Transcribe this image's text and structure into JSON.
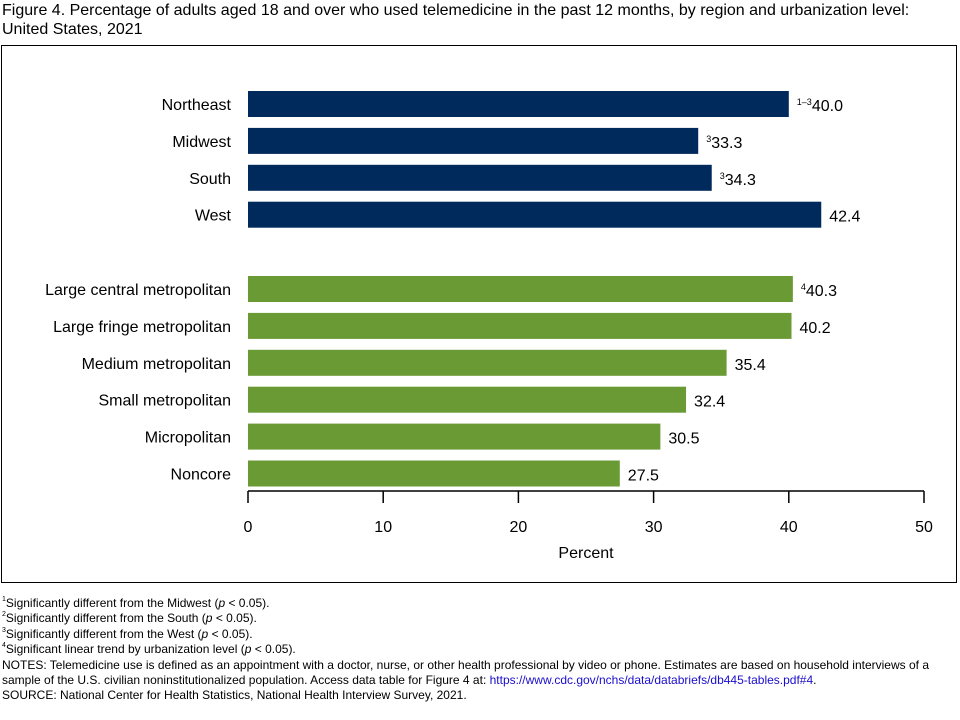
{
  "chart_data": {
    "type": "bar",
    "orientation": "horizontal",
    "title": "Figure 4. Percentage of adults aged 18 and over who used telemedicine in the past 12 months, by region and urbanization level: United States, 2021",
    "xlabel": "Percent",
    "xlim": [
      0,
      50
    ],
    "xticks": [
      0,
      10,
      20,
      30,
      40,
      50
    ],
    "groups": [
      {
        "name": "Region",
        "color": "#002a5c",
        "categories": [
          "Northeast",
          "Midwest",
          "South",
          "West"
        ],
        "values": [
          40.0,
          33.3,
          34.3,
          42.4
        ],
        "value_labels": [
          "40.0",
          "33.3",
          "34.3",
          "42.4"
        ],
        "superscripts": [
          "1–3",
          "3",
          "3",
          ""
        ]
      },
      {
        "name": "Urbanization level",
        "color": "#6a9a33",
        "categories": [
          "Large central metropolitan",
          "Large fringe metropolitan",
          "Medium metropolitan",
          "Small metropolitan",
          "Micropolitan",
          "Noncore"
        ],
        "values": [
          40.3,
          40.2,
          35.4,
          32.4,
          30.5,
          27.5
        ],
        "value_labels": [
          "40.3",
          "40.2",
          "35.4",
          "32.4",
          "30.5",
          "27.5"
        ],
        "superscripts": [
          "4",
          "",
          "",
          "",
          "",
          ""
        ]
      }
    ]
  },
  "footnotes": [
    {
      "mark": "1",
      "text": "Significantly different from the Midwest (",
      "p": "p",
      "tail": " < 0.05)."
    },
    {
      "mark": "2",
      "text": "Significantly different from the South (",
      "p": "p",
      "tail": " < 0.05)."
    },
    {
      "mark": "3",
      "text": "Significantly different from the West (",
      "p": "p",
      "tail": " < 0.05)."
    },
    {
      "mark": "4",
      "text": "Significant linear trend by urbanization level (",
      "p": "p",
      "tail": " < 0.05)."
    }
  ],
  "notes": "NOTES: Telemedicine use is defined as an appointment with a doctor, nurse, or other health professional by video or phone. Estimates are based on household interviews of a sample of the U.S. civilian noninstitutionalized population. Access data table for Figure 4 at: ",
  "notes_link": "https://www.cdc.gov/nchs/data/databriefs/db445-tables.pdf#4",
  "notes_end": ".",
  "source": "SOURCE: National Center for Health Statistics, National Health Interview Survey, 2021."
}
